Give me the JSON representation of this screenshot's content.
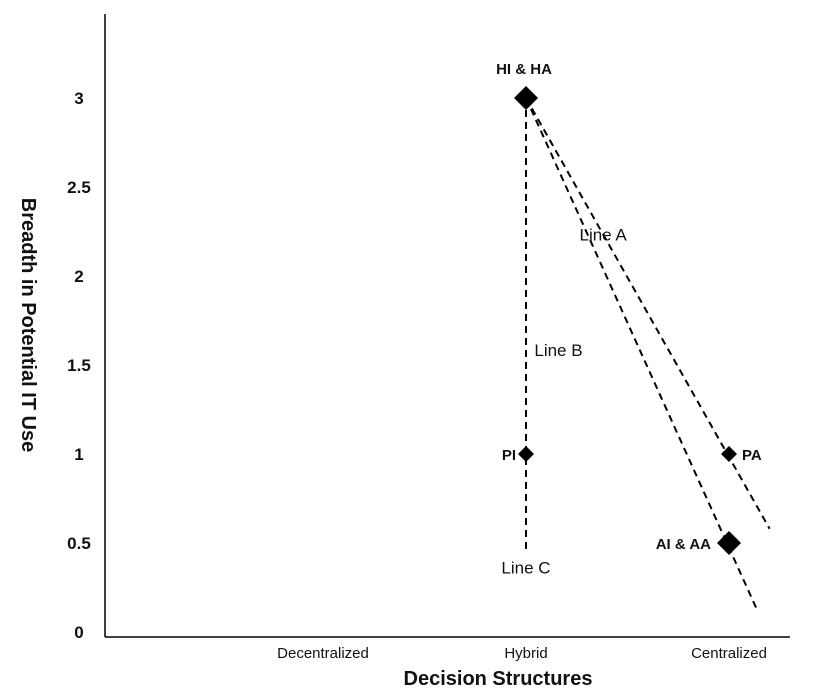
{
  "chart_data": {
    "type": "scatter",
    "xlabel": "Decision Structures",
    "ylabel": "Breadth in Potential IT Use",
    "categories": [
      "Decentralized",
      "Hybrid",
      "Centralized"
    ],
    "ylim": [
      0,
      3.4
    ],
    "yticks": [
      "0",
      "0.5",
      "1",
      "1.5",
      "2",
      "2.5",
      "3"
    ],
    "grid": false,
    "points": [
      {
        "label": "HI & HA",
        "x": "Hybrid",
        "y": 3.0,
        "size": "large"
      },
      {
        "label": "PI",
        "x": "Hybrid",
        "y": 1.0,
        "size": "small"
      },
      {
        "label": "PA",
        "x": "Centralized",
        "y": 1.0,
        "size": "small"
      },
      {
        "label": "AI & AA",
        "x": "Centralized",
        "y": 0.5,
        "size": "large"
      }
    ],
    "lines": [
      {
        "label": "Line A",
        "style": "dashed",
        "x": [
          1.0,
          2.2
        ],
        "y": [
          3.0,
          0.58
        ]
      },
      {
        "label": "Line B",
        "style": "dashed",
        "x": [
          1.0,
          2.14
        ],
        "y": [
          3.0,
          0.12
        ]
      },
      {
        "label": "Line C",
        "style": "dashed",
        "x": [
          1.0,
          1.0
        ],
        "y": [
          3.0,
          0.45
        ]
      }
    ]
  }
}
